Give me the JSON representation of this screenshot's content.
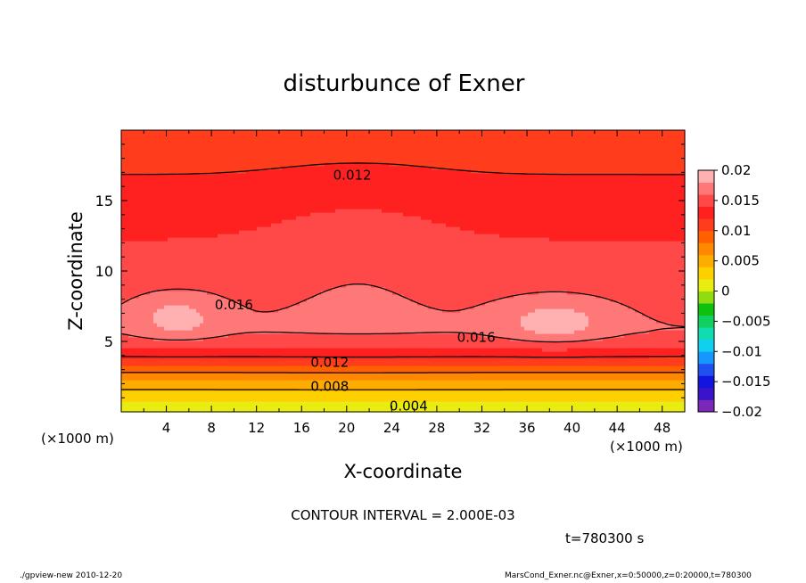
{
  "chart_data": {
    "type": "heatmap",
    "title": "disturbunce of Exner",
    "xlabel": "X-coordinate",
    "ylabel": "Z-coordinate",
    "x_unit_left": "(×1000 m)",
    "x_unit_right": "(×1000 m)",
    "xlim": [
      0,
      50
    ],
    "ylim": [
      0,
      20
    ],
    "x_ticks": [
      "4",
      "8",
      "12",
      "16",
      "20",
      "24",
      "28",
      "32",
      "36",
      "40",
      "44",
      "48"
    ],
    "y_ticks": [
      "5",
      "10",
      "15"
    ],
    "contour_interval_text": "CONTOUR INTERVAL = 2.000E-03",
    "time_text": "t=780300 s",
    "colorbar": {
      "range": [
        -0.02,
        0.02
      ],
      "labels": [
        "0.02",
        "0.015",
        "0.01",
        "0.005",
        "0",
        "−0.005",
        "−0.01",
        "−0.015",
        "−0.02"
      ],
      "colors": [
        "#7a28b8",
        "#3a14c8",
        "#1414e0",
        "#2050f0",
        "#1896ff",
        "#10d0f0",
        "#10dcb0",
        "#10d060",
        "#10c010",
        "#90dc10",
        "#e8ec10",
        "#ffd000",
        "#ffac00",
        "#ff8800",
        "#ff6000",
        "#ff3c1c",
        "#ff2020",
        "#ff4848",
        "#ff7878",
        "#ffb0b0"
      ]
    },
    "contour_labels": [
      {
        "text": "0.012",
        "x": 20.5,
        "z": 16.8
      },
      {
        "text": "0.016",
        "x": 10,
        "z": 7.6
      },
      {
        "text": "0.016",
        "x": 31.5,
        "z": 5.3
      },
      {
        "text": "0.012",
        "x": 18.5,
        "z": 3.5
      },
      {
        "text": "0.008",
        "x": 18.5,
        "z": 1.8
      },
      {
        "text": "0.004",
        "x": 25.5,
        "z": 0.4
      }
    ]
  },
  "footer": {
    "left": "./gpview-new  2010-12-20",
    "right": "MarsCond_Exner.nc@Exner,x=0:50000,z=0:20000,t=780300"
  }
}
